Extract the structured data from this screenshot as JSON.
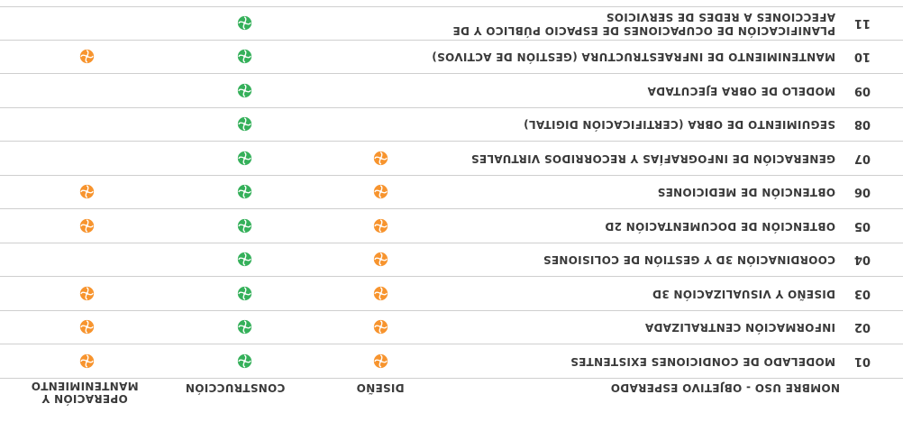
{
  "header": {
    "name_label": "Nombre uso - Objetivo esperado",
    "diseno_label": "Diseño",
    "construccion_label": "Construcción",
    "operacion_label": "Operación y mantenimiento"
  },
  "colors": {
    "diseno": "#f7942e",
    "construccion": "#35b05a",
    "operacion": "#f7942e"
  },
  "rows": [
    {
      "num": "01",
      "name": "Modelado de condiciones existentes",
      "diseno": true,
      "construccion": true,
      "operacion": true
    },
    {
      "num": "02",
      "name": "Información centralizada",
      "diseno": true,
      "construccion": true,
      "operacion": true
    },
    {
      "num": "03",
      "name": "Diseño y visualización 3D",
      "diseno": true,
      "construccion": true,
      "operacion": true
    },
    {
      "num": "04",
      "name": "Coordinación 3D y gestión de colisiones",
      "diseno": true,
      "construccion": true,
      "operacion": false
    },
    {
      "num": "05",
      "name": "Obtención de documentación 2D",
      "diseno": true,
      "construccion": true,
      "operacion": true
    },
    {
      "num": "06",
      "name": "Obtención de mediciones",
      "diseno": true,
      "construccion": true,
      "operacion": true
    },
    {
      "num": "07",
      "name": "Generación de infografías y recorridos virtuales",
      "diseno": true,
      "construccion": true,
      "operacion": false
    },
    {
      "num": "08",
      "name": "Seguimiento de obra (certificación digital)",
      "diseno": false,
      "construccion": true,
      "operacion": false
    },
    {
      "num": "09",
      "name": "Modelo de obra ejecutada",
      "diseno": false,
      "construccion": true,
      "operacion": false
    },
    {
      "num": "10",
      "name": "Mantenimiento de infraestructura (gestión de activos)",
      "diseno": false,
      "construccion": true,
      "operacion": true
    },
    {
      "num": "11",
      "name": "Planificación de ocupaciones de espacio público y de afecciones a redes de servicios",
      "diseno": false,
      "construccion": true,
      "operacion": false
    }
  ]
}
